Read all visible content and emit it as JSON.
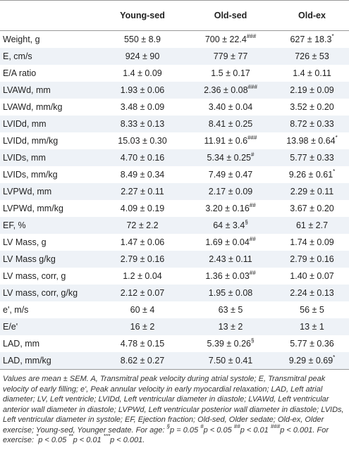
{
  "table": {
    "header": [
      "",
      "Young-sed",
      "Old-sed",
      "Old-ex"
    ],
    "rows": [
      [
        "Weight, g",
        "550 ± 8.9",
        {
          "text": "700 ± 22.4",
          "sup": "###"
        },
        {
          "text": "627 ± 18.3",
          "sup": "*"
        }
      ],
      [
        "E, cm/s",
        "924 ± 90",
        "779 ± 77",
        "726 ± 53"
      ],
      [
        "E/A ratio",
        "1.4 ± 0.09",
        "1.5 ± 0.17",
        "1.4 ± 0.11"
      ],
      [
        "LVAWd, mm",
        "1.93 ± 0.06",
        {
          "text": "2.36 ± 0.08",
          "sup": "###"
        },
        "2.19 ± 0.09"
      ],
      [
        "LVAWd, mm/kg",
        "3.48 ± 0.09",
        "3.40 ± 0.04",
        "3.52 ± 0.20"
      ],
      [
        "LVIDd, mm",
        "8.33 ± 0.13",
        "8.41 ± 0.25",
        "8.72 ± 0.33"
      ],
      [
        "LVIDd, mm/kg",
        "15.03 ± 0.30",
        {
          "text": "11.91 ± 0.6",
          "sup": "###"
        },
        {
          "text": "13.98 ± 0.64",
          "sup": "*"
        }
      ],
      [
        "LVIDs, mm",
        "4.70 ± 0.16",
        {
          "text": "5.34 ± 0.25",
          "sup": "#"
        },
        "5.77 ± 0.33"
      ],
      [
        "LVIDs, mm/kg",
        "8.49 ± 0.34",
        "7.49 ± 0.47",
        {
          "text": "9.26 ± 0.61",
          "sup": "*"
        }
      ],
      [
        "LVPWd, mm",
        "2.27 ± 0.11",
        "2.17 ± 0.09",
        "2.29 ± 0.11"
      ],
      [
        "LVPWd, mm/kg",
        "4.09 ± 0.19",
        {
          "text": "3.20 ± 0.16",
          "sup": "##"
        },
        "3.67 ± 0.20"
      ],
      [
        "EF, %",
        "72 ± 2.2",
        {
          "text": "64 ± 3.4",
          "sup": "§"
        },
        "61 ± 2.7"
      ],
      [
        "LV Mass, g",
        "1.47 ± 0.06",
        {
          "text": "1.69 ± 0.04",
          "sup": "##"
        },
        "1.74 ± 0.09"
      ],
      [
        "LV Mass g/kg",
        "2.79 ± 0.16",
        "2.43 ± 0.11",
        "2.79 ± 0.16"
      ],
      [
        "LV mass, corr, g",
        "1.2 ± 0.04",
        {
          "text": "1.36 ± 0.03",
          "sup": "##"
        },
        "1.40 ± 0.07"
      ],
      [
        "LV mass, corr, g/kg",
        "2.12 ± 0.07",
        "1.95 ± 0.08",
        "2.24 ± 0.13"
      ],
      [
        "e', m/s",
        "60 ± 4",
        "63 ± 5",
        "56 ± 5"
      ],
      [
        "E/e'",
        "16 ± 2",
        "13 ± 2",
        "13 ± 1"
      ],
      [
        "LAD, mm",
        "4.78 ± 0.15",
        {
          "text": "5.39 ± 0.26",
          "sup": "§"
        },
        "5.77 ± 0.36"
      ],
      [
        "LAD, mm/kg",
        "8.62 ± 0.27",
        "7.50 ± 0.41",
        {
          "text": "9.29 ± 0.69",
          "sup": "*"
        }
      ]
    ]
  },
  "footnote": [
    {
      "text": "Values are mean ± SEM. A, Transmitral peak velocity during atrial systole; E, Transmitral peak velocity of early filling; e', Peak annular velocity in early myocardial relaxation; LAD, Left atrial diameter; LV, Left ventricle; LVIDd, Left ventricular diameter in diastole; LVAWd, Left ventricular anterior wall diameter in diastole; LVPWd, Left ventricular posterior wall diameter in diastole; LVIDs, Left ventricular diameter in systole; EF, Ejection fraction; Old-sed, Older sedate; Old-ex, Older exercise; Young-sed, Younger sedate. For age: "
    },
    {
      "sup": "§"
    },
    {
      "em": "p"
    },
    {
      "text": " = 0.05 "
    },
    {
      "sup": "#"
    },
    {
      "em": "p"
    },
    {
      "text": " < 0.05 "
    },
    {
      "sup": "##"
    },
    {
      "em": "p"
    },
    {
      "text": " < 0.01 "
    },
    {
      "sup": "###"
    },
    {
      "em": "p"
    },
    {
      "text": " < 0.001. For exercise: "
    },
    {
      "sup": "*"
    },
    {
      "em": "p"
    },
    {
      "text": " < 0.05 "
    },
    {
      "sup": "**"
    },
    {
      "em": "p"
    },
    {
      "text": " < 0.01 "
    },
    {
      "sup": "***"
    },
    {
      "em": "p"
    },
    {
      "text": " < 0.001."
    }
  ]
}
